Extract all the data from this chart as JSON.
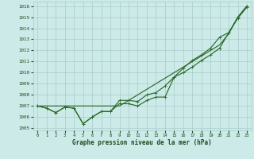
{
  "x": [
    0,
    1,
    2,
    3,
    4,
    5,
    6,
    7,
    8,
    9,
    10,
    11,
    12,
    13,
    14,
    15,
    16,
    17,
    18,
    19,
    20,
    21,
    22,
    23
  ],
  "line_smooth": [
    1007.0,
    1007.0,
    1007.0,
    1007.0,
    1007.0,
    1007.0,
    1007.0,
    1007.0,
    1007.0,
    1007.0,
    1007.5,
    1008.0,
    1008.5,
    1009.0,
    1009.5,
    1010.0,
    1010.5,
    1011.0,
    1011.5,
    1012.0,
    1012.5,
    1013.5,
    1015.0,
    1016.0
  ],
  "line_markers1": [
    1007.0,
    1006.8,
    1006.4,
    1006.9,
    1006.8,
    1005.4,
    1006.0,
    1006.5,
    1006.5,
    1007.2,
    1007.2,
    1007.0,
    1007.5,
    1007.8,
    1007.8,
    1009.6,
    1010.4,
    1011.1,
    1011.6,
    1012.2,
    1013.2,
    1013.6,
    1015.0,
    1016.0
  ],
  "line_markers2": [
    1007.0,
    1006.8,
    1006.4,
    1006.9,
    1006.8,
    1005.4,
    1006.0,
    1006.5,
    1006.5,
    1007.5,
    1007.5,
    1007.4,
    1008.0,
    1008.2,
    1008.8,
    1009.6,
    1010.0,
    1010.5,
    1011.1,
    1011.6,
    1012.2,
    1013.6,
    1014.9,
    1015.9
  ],
  "ylim": [
    1004.8,
    1016.4
  ],
  "yticks": [
    1005,
    1006,
    1007,
    1008,
    1009,
    1010,
    1011,
    1012,
    1013,
    1014,
    1015,
    1016
  ],
  "xticks": [
    0,
    1,
    2,
    3,
    4,
    5,
    6,
    7,
    8,
    9,
    10,
    11,
    12,
    13,
    14,
    15,
    16,
    17,
    18,
    19,
    20,
    21,
    22,
    23
  ],
  "xlabel": "Graphe pression niveau de la mer (hPa)",
  "line_color": "#2d6a2d",
  "bg_color": "#cceae8",
  "grid_color": "#a8ccca",
  "label_color": "#1a4a1a"
}
